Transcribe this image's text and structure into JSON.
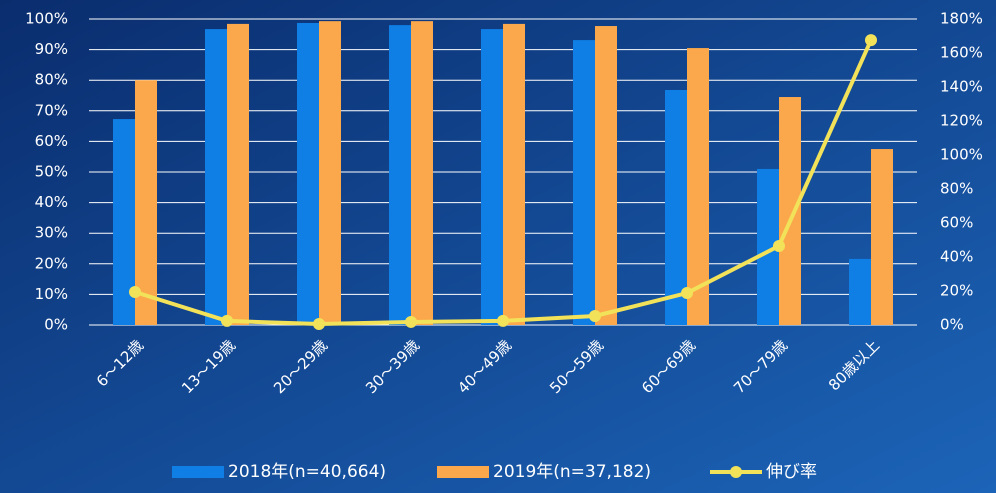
{
  "chart_data": {
    "type": "bar-line",
    "categories": [
      "6〜12歳",
      "13〜19歳",
      "20〜29歳",
      "30〜39歳",
      "40〜49歳",
      "50〜59歳",
      "60〜69歳",
      "70〜79歳",
      "80歳以上"
    ],
    "series": [
      {
        "name": "2018年(n=40,664)",
        "type": "bar",
        "color": "#0f7fe6",
        "values": [
          67.3,
          96.7,
          98.7,
          98.0,
          96.7,
          93.1,
          76.8,
          51.0,
          21.6
        ]
      },
      {
        "name": "2019年(n=37,182)",
        "type": "bar",
        "color": "#fba84c",
        "values": [
          80.0,
          98.4,
          99.3,
          99.3,
          98.4,
          97.7,
          90.5,
          74.5,
          57.5
        ]
      },
      {
        "name": "伸び率",
        "type": "line",
        "axis": "y2",
        "color": "#f2e25a",
        "values": [
          19.4,
          2.4,
          0.6,
          1.8,
          2.4,
          5.3,
          18.8,
          46.5,
          167.6
        ]
      }
    ],
    "ylim": [
      0,
      100
    ],
    "yticks": [
      {
        "value": 0,
        "label": "0%"
      },
      {
        "value": 10,
        "label": "10%"
      },
      {
        "value": 20,
        "label": "20%"
      },
      {
        "value": 30,
        "label": "30%"
      },
      {
        "value": 40,
        "label": "40%"
      },
      {
        "value": 50,
        "label": "50%"
      },
      {
        "value": 60,
        "label": "60%"
      },
      {
        "value": 70,
        "label": "70%"
      },
      {
        "value": 80,
        "label": "80%"
      },
      {
        "value": 90,
        "label": "90%"
      },
      {
        "value": 100,
        "label": "100%"
      }
    ],
    "y2lim": [
      0,
      180
    ],
    "y2ticks": [
      {
        "value": 0,
        "label": "0%"
      },
      {
        "value": 20,
        "label": "20%"
      },
      {
        "value": 40,
        "label": "40%"
      },
      {
        "value": 60,
        "label": "60%"
      },
      {
        "value": 80,
        "label": "80%"
      },
      {
        "value": 100,
        "label": "100%"
      },
      {
        "value": 120,
        "label": "120%"
      },
      {
        "value": 140,
        "label": "140%"
      },
      {
        "value": 160,
        "label": "160%"
      },
      {
        "value": 180,
        "label": "180%"
      }
    ],
    "grid": true,
    "legend": "bottom"
  }
}
